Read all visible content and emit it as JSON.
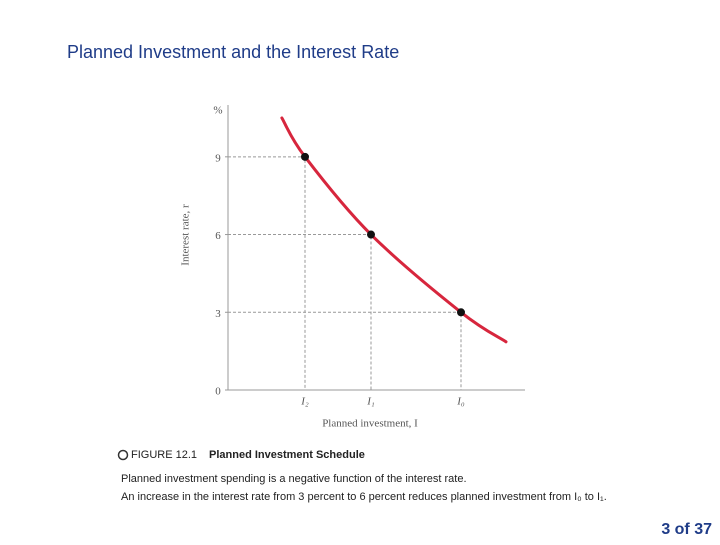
{
  "title": "Planned Investment and the Interest Rate",
  "chart_data": {
    "type": "line",
    "y_unit": "%",
    "ylabel": "Interest rate, r",
    "xlabel": "Planned investment, I",
    "categories": [
      "I₂",
      "I₁",
      "I₀"
    ],
    "values": [
      9,
      6,
      3
    ],
    "color": "#d7263d",
    "ylim": [
      0,
      11
    ],
    "yticks": [
      0,
      3,
      6,
      9
    ]
  },
  "caption": {
    "figure_label": "FIGURE 12.1",
    "figure_title": "Planned Investment Schedule",
    "lines": [
      "Planned investment spending is a negative function of the interest rate.",
      "An increase in the interest rate from 3 percent to 6 percent reduces planned investment from I₀ to I₁."
    ]
  },
  "page_number": "3 of 37"
}
